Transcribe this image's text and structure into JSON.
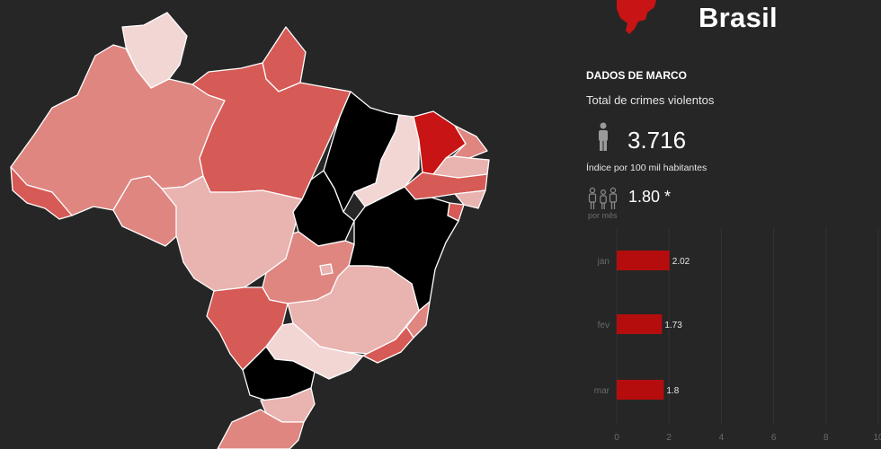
{
  "header": {
    "title": "Brasil",
    "logo_icon": "brazil-map-logo-icon"
  },
  "summary": {
    "period": "DADOS DE MARCO",
    "metric_label": "Total de crimes violentos",
    "metric_value": "3.716",
    "metric_icon": "person-icon",
    "index_label": "Índice por 100 mil habitantes",
    "index_value": "1.80 *",
    "index_icon": "people-group-icon",
    "index_sub": "por mês"
  },
  "map": {
    "palette": {
      "black": "#000000",
      "dark_red": "#c81414",
      "red": "#d65a56",
      "medium": "#df8681",
      "light": "#e9b3b0",
      "pale": "#f2d6d4"
    }
  },
  "chart_data": {
    "type": "bar",
    "orientation": "horizontal",
    "categories": [
      "jan",
      "fev",
      "mar"
    ],
    "values": [
      2.02,
      1.73,
      1.8
    ],
    "value_labels": [
      "2.02",
      "1.73",
      "1.8"
    ],
    "xlim": [
      0,
      10
    ],
    "xticks": [
      "0",
      "2",
      "4",
      "6",
      "8",
      "10"
    ],
    "bar_color": "#b50d0d",
    "grid": true
  }
}
